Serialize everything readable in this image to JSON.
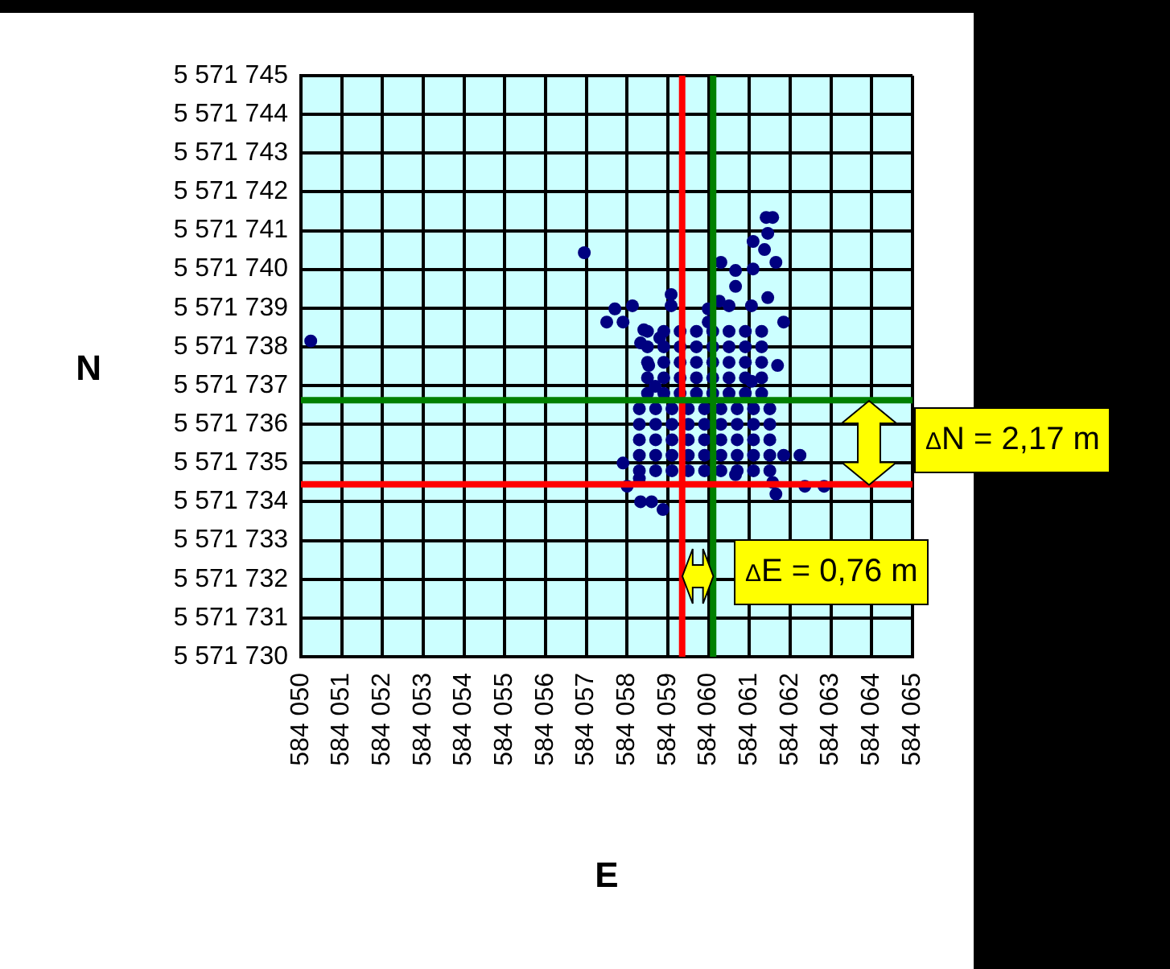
{
  "chart_data": {
    "type": "scatter",
    "xlabel": "E",
    "ylabel": "N",
    "x": [
      584050.24,
      584056.95,
      584061.57,
      584061.41,
      584061.45,
      584061.09,
      584061.37,
      584061.65,
      584060.3,
      584060.66,
      584061.09,
      584060.66,
      584060.26,
      584060.5,
      584061.45,
      584061.05,
      584061.84,
      584059.08,
      584059.08,
      584057.7,
      584058.13,
      584057.5,
      584057.9,
      584058.41,
      584058.33,
      584058.8,
      584059.99,
      584059.99,
      584061.69,
      584061.05,
      584058.53,
      584058.69,
      584057.9,
      584058.3,
      584058.0,
      584058.33,
      584058.6,
      584058.88,
      584061.84,
      584062.24,
      584061.57,
      584062.36,
      584062.83,
      584061.65,
      584060.66,
      584058.3,
      584058.7,
      584059.1,
      584059.5,
      584059.9,
      584060.3,
      584060.7,
      584061.1,
      584061.5,
      584058.3,
      584058.7,
      584059.1,
      584059.5,
      584059.9,
      584060.3,
      584060.7,
      584061.1,
      584061.5,
      584058.3,
      584058.7,
      584059.1,
      584059.5,
      584059.9,
      584060.3,
      584060.7,
      584061.1,
      584061.5,
      584058.3,
      584058.7,
      584059.1,
      584059.5,
      584059.9,
      584060.3,
      584060.7,
      584061.1,
      584061.5,
      584058.3,
      584058.7,
      584059.1,
      584059.5,
      584059.9,
      584060.3,
      584060.7,
      584061.1,
      584061.5,
      584058.5,
      584058.9,
      584059.3,
      584059.7,
      584060.1,
      584060.5,
      584060.9,
      584061.3,
      584058.5,
      584058.9,
      584059.3,
      584059.7,
      584060.1,
      584060.5,
      584060.9,
      584061.3,
      584058.5,
      584058.9,
      584059.3,
      584059.7,
      584060.1,
      584060.5,
      584060.9,
      584061.3,
      584058.5,
      584058.9,
      584059.3,
      584059.7,
      584060.1,
      584060.5,
      584060.9,
      584061.3,
      584058.5,
      584058.9,
      584059.3,
      584059.7,
      584060.1,
      584060.5,
      584060.9,
      584061.3
    ],
    "values": [
      5571738.15,
      5571740.43,
      5571741.34,
      5571741.34,
      5571740.93,
      5571740.72,
      5571740.51,
      5571740.18,
      5571740.18,
      5571739.97,
      5571740.01,
      5571739.56,
      5571739.18,
      5571739.06,
      5571739.27,
      5571739.06,
      5571738.64,
      5571739.35,
      5571739.06,
      5571738.98,
      5571739.06,
      5571738.64,
      5571738.64,
      5571738.44,
      5571738.1,
      5571738.23,
      5571738.98,
      5571738.64,
      5571737.52,
      5571737.11,
      5571737.52,
      5571736.98,
      5571735.0,
      5571734.6,
      5571734.4,
      5571734.0,
      5571734.0,
      5571733.8,
      5571735.2,
      5571735.2,
      5571734.5,
      5571734.4,
      5571734.4,
      5571734.2,
      5571734.7,
      5571734.8,
      5571734.8,
      5571734.8,
      5571734.8,
      5571734.8,
      5571734.8,
      5571734.8,
      5571734.8,
      5571734.8,
      5571735.2,
      5571735.2,
      5571735.2,
      5571735.2,
      5571735.2,
      5571735.2,
      5571735.2,
      5571735.2,
      5571735.2,
      5571735.6,
      5571735.6,
      5571735.6,
      5571735.6,
      5571735.6,
      5571735.6,
      5571735.6,
      5571735.6,
      5571735.6,
      5571736.0,
      5571736.0,
      5571736.0,
      5571736.0,
      5571736.0,
      5571736.0,
      5571736.0,
      5571736.0,
      5571736.0,
      5571736.4,
      5571736.4,
      5571736.4,
      5571736.4,
      5571736.4,
      5571736.4,
      5571736.4,
      5571736.4,
      5571736.4,
      5571736.8,
      5571736.8,
      5571736.8,
      5571736.8,
      5571736.8,
      5571736.8,
      5571736.8,
      5571736.8,
      5571737.2,
      5571737.2,
      5571737.2,
      5571737.2,
      5571737.2,
      5571737.2,
      5571737.2,
      5571737.2,
      5571737.6,
      5571737.6,
      5571737.6,
      5571737.6,
      5571737.6,
      5571737.6,
      5571737.6,
      5571737.6,
      5571738.0,
      5571738.0,
      5571738.0,
      5571738.0,
      5571738.0,
      5571738.0,
      5571738.0,
      5571738.0,
      5571738.4,
      5571738.4,
      5571738.4,
      5571738.4,
      5571738.4,
      5571738.4,
      5571738.4,
      5571738.4
    ],
    "color": "#000080",
    "marker": "circle",
    "xlim": [
      584050,
      584065
    ],
    "xticks": [
      {
        "value": 584050,
        "label": "584 050"
      },
      {
        "value": 584051,
        "label": "584 051"
      },
      {
        "value": 584052,
        "label": "584 052"
      },
      {
        "value": 584053,
        "label": "584 053"
      },
      {
        "value": 584054,
        "label": "584 054"
      },
      {
        "value": 584055,
        "label": "584 055"
      },
      {
        "value": 584056,
        "label": "584 056"
      },
      {
        "value": 584057,
        "label": "584 057"
      },
      {
        "value": 584058,
        "label": "584 058"
      },
      {
        "value": 584059,
        "label": "584 059"
      },
      {
        "value": 584060,
        "label": "584 060"
      },
      {
        "value": 584061,
        "label": "584 061"
      },
      {
        "value": 584062,
        "label": "584 062"
      },
      {
        "value": 584063,
        "label": "584 063"
      },
      {
        "value": 584064,
        "label": "584 064"
      },
      {
        "value": 584065,
        "label": "584 065"
      }
    ],
    "ylim": [
      5571730,
      5571745
    ],
    "yticks": [
      {
        "value": 5571730,
        "label": "5 571 730"
      },
      {
        "value": 5571731,
        "label": "5 571 731"
      },
      {
        "value": 5571732,
        "label": "5 571 732"
      },
      {
        "value": 5571733,
        "label": "5 571 733"
      },
      {
        "value": 5571734,
        "label": "5 571 734"
      },
      {
        "value": 5571735,
        "label": "5 571 735"
      },
      {
        "value": 5571736,
        "label": "5 571 736"
      },
      {
        "value": 5571737,
        "label": "5 571 737"
      },
      {
        "value": 5571738,
        "label": "5 571 738"
      },
      {
        "value": 5571739,
        "label": "5 571 739"
      },
      {
        "value": 5571740,
        "label": "5 571 740"
      },
      {
        "value": 5571741,
        "label": "5 571 741"
      },
      {
        "value": 5571742,
        "label": "5 571 742"
      },
      {
        "value": 5571743,
        "label": "5 571 743"
      },
      {
        "value": 5571744,
        "label": "5 571 744"
      },
      {
        "value": 5571745,
        "label": "5 571 745"
      }
    ],
    "ref_lines": [
      {
        "axis": "x",
        "value": 584059.35,
        "color": "#ff0000"
      },
      {
        "axis": "x",
        "value": 584060.11,
        "color": "#008000"
      },
      {
        "axis": "y",
        "value": 5571734.45,
        "color": "#ff0000"
      },
      {
        "axis": "y",
        "value": 5571736.62,
        "color": "#008000"
      }
    ],
    "annotations": [
      "ΔN = 2,17 m",
      "ΔE = 0,76 m"
    ],
    "grid": true,
    "legend": false
  }
}
